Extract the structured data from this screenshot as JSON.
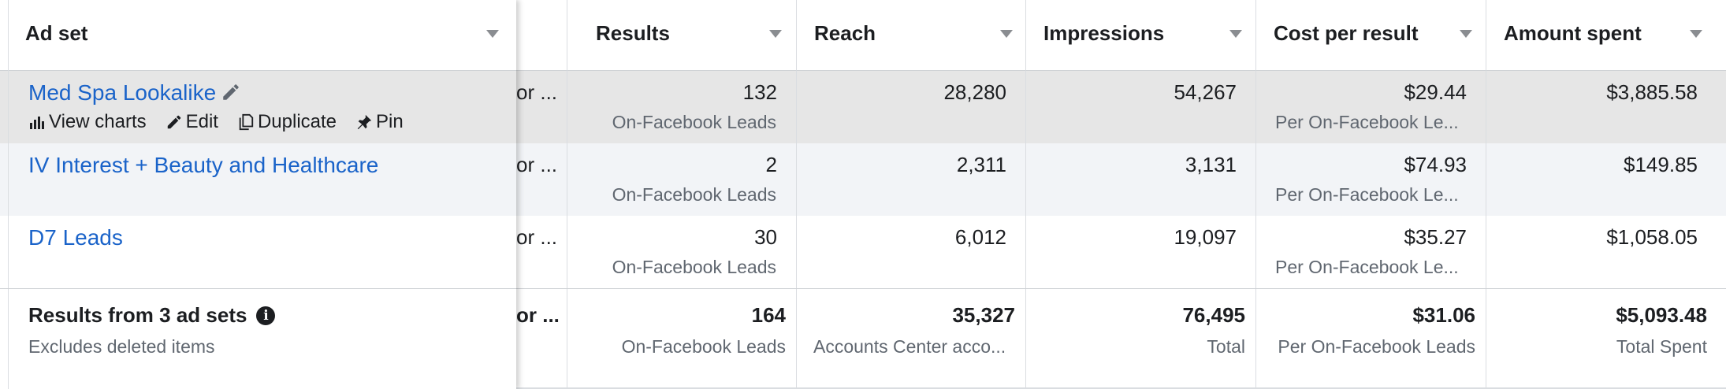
{
  "header": {
    "adset": "Ad set",
    "results": "Results",
    "reach": "Reach",
    "impressions": "Impressions",
    "cost": "Cost per result",
    "amount": "Amount spent"
  },
  "rows": [
    {
      "name": "Med Spa Lookalike",
      "trunc": "or ...",
      "results": "132",
      "results_sub": "On-Facebook Leads",
      "reach": "28,280",
      "impressions": "54,267",
      "cost": "$29.44",
      "cost_sub": "Per On-Facebook Le...",
      "amount": "$3,885.58"
    },
    {
      "name": "IV Interest + Beauty and Healthcare",
      "trunc": "or ...",
      "results": "2",
      "results_sub": "On-Facebook Leads",
      "reach": "2,311",
      "impressions": "3,131",
      "cost": "$74.93",
      "cost_sub": "Per On-Facebook Le...",
      "amount": "$149.85"
    },
    {
      "name": "D7 Leads",
      "trunc": "or ...",
      "results": "30",
      "results_sub": "On-Facebook Leads",
      "reach": "6,012",
      "impressions": "19,097",
      "cost": "$35.27",
      "cost_sub": "Per On-Facebook Le...",
      "amount": "$1,058.05"
    }
  ],
  "row_actions": {
    "view_charts": "View charts",
    "edit": "Edit",
    "duplicate": "Duplicate",
    "pin": "Pin"
  },
  "total": {
    "title": "Results from 3 ad sets",
    "subtitle": "Excludes deleted items",
    "trunc": "or ...",
    "results": "164",
    "results_sub": "On-Facebook Leads",
    "reach": "35,327",
    "reach_sub": "Accounts Center acco...",
    "impressions": "76,495",
    "impressions_sub": "Total",
    "cost": "$31.06",
    "cost_sub": "Per On-Facebook Leads",
    "amount": "$5,093.48",
    "amount_sub": "Total Spent"
  },
  "colors": {
    "link": "#1a63c9",
    "selected_row": "#e6e6e6",
    "alt_row": "#f2f4f7",
    "border": "#dadde1"
  },
  "icons": [
    "pencil-icon",
    "bar-chart-icon",
    "edit-pencil-icon",
    "duplicate-icon",
    "pin-icon",
    "info-icon",
    "sort-caret-icon"
  ]
}
